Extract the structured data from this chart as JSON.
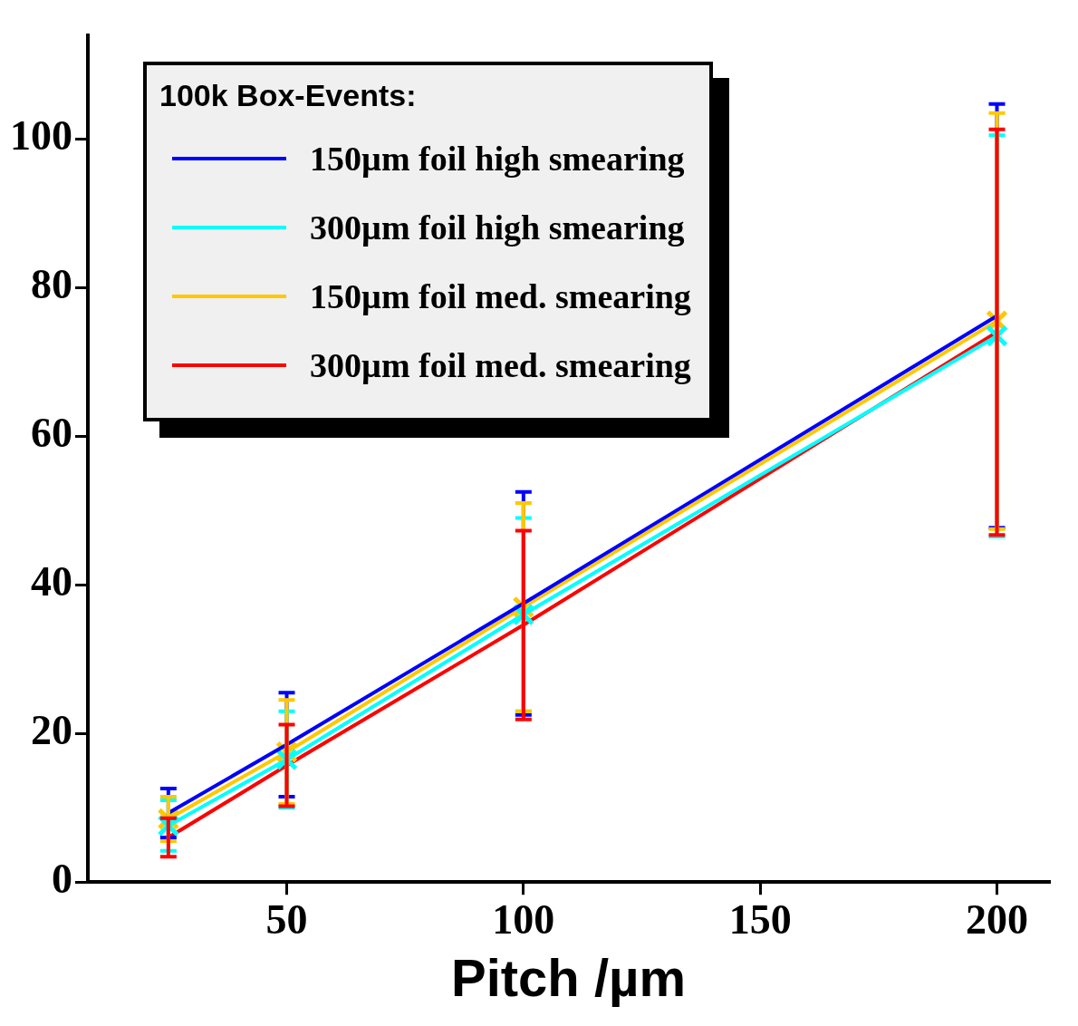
{
  "chart_data": {
    "type": "line",
    "xlabel": "Pitch /µm",
    "legend_title": "100k Box-Events:",
    "legend": "top left",
    "grid": false,
    "x": [
      25,
      50,
      100,
      200
    ],
    "xlim": [
      8,
      211
    ],
    "xticks": [
      50,
      100,
      150,
      200
    ],
    "ylim": [
      0,
      114
    ],
    "yticks": [
      0,
      20,
      40,
      60,
      80,
      100
    ],
    "series": [
      {
        "name": "150µm foil high smearing",
        "color": "#0000ff",
        "marker": "none",
        "values": [
          9.3,
          18.5,
          37.5,
          76.2
        ],
        "errors": [
          3.3,
          7,
          15,
          28.5
        ]
      },
      {
        "name": "300µm foil high smearing",
        "color": "#00ffff",
        "marker": "x",
        "values": [
          7.6,
          16.5,
          36,
          73.5
        ],
        "errors": [
          3.4,
          6.5,
          13,
          27
        ]
      },
      {
        "name": "150µm foil med. smearing",
        "color": "#ffc800",
        "marker": "x",
        "values": [
          8.5,
          17.5,
          37,
          75.5
        ],
        "errors": [
          3,
          7,
          14,
          28
        ]
      },
      {
        "name": "300µm foil med. smearing",
        "color": "#ff0000",
        "marker": "none",
        "values": [
          6,
          15.7,
          34.6,
          74
        ],
        "errors": [
          2.6,
          5.5,
          12.7,
          27.3
        ]
      }
    ]
  }
}
